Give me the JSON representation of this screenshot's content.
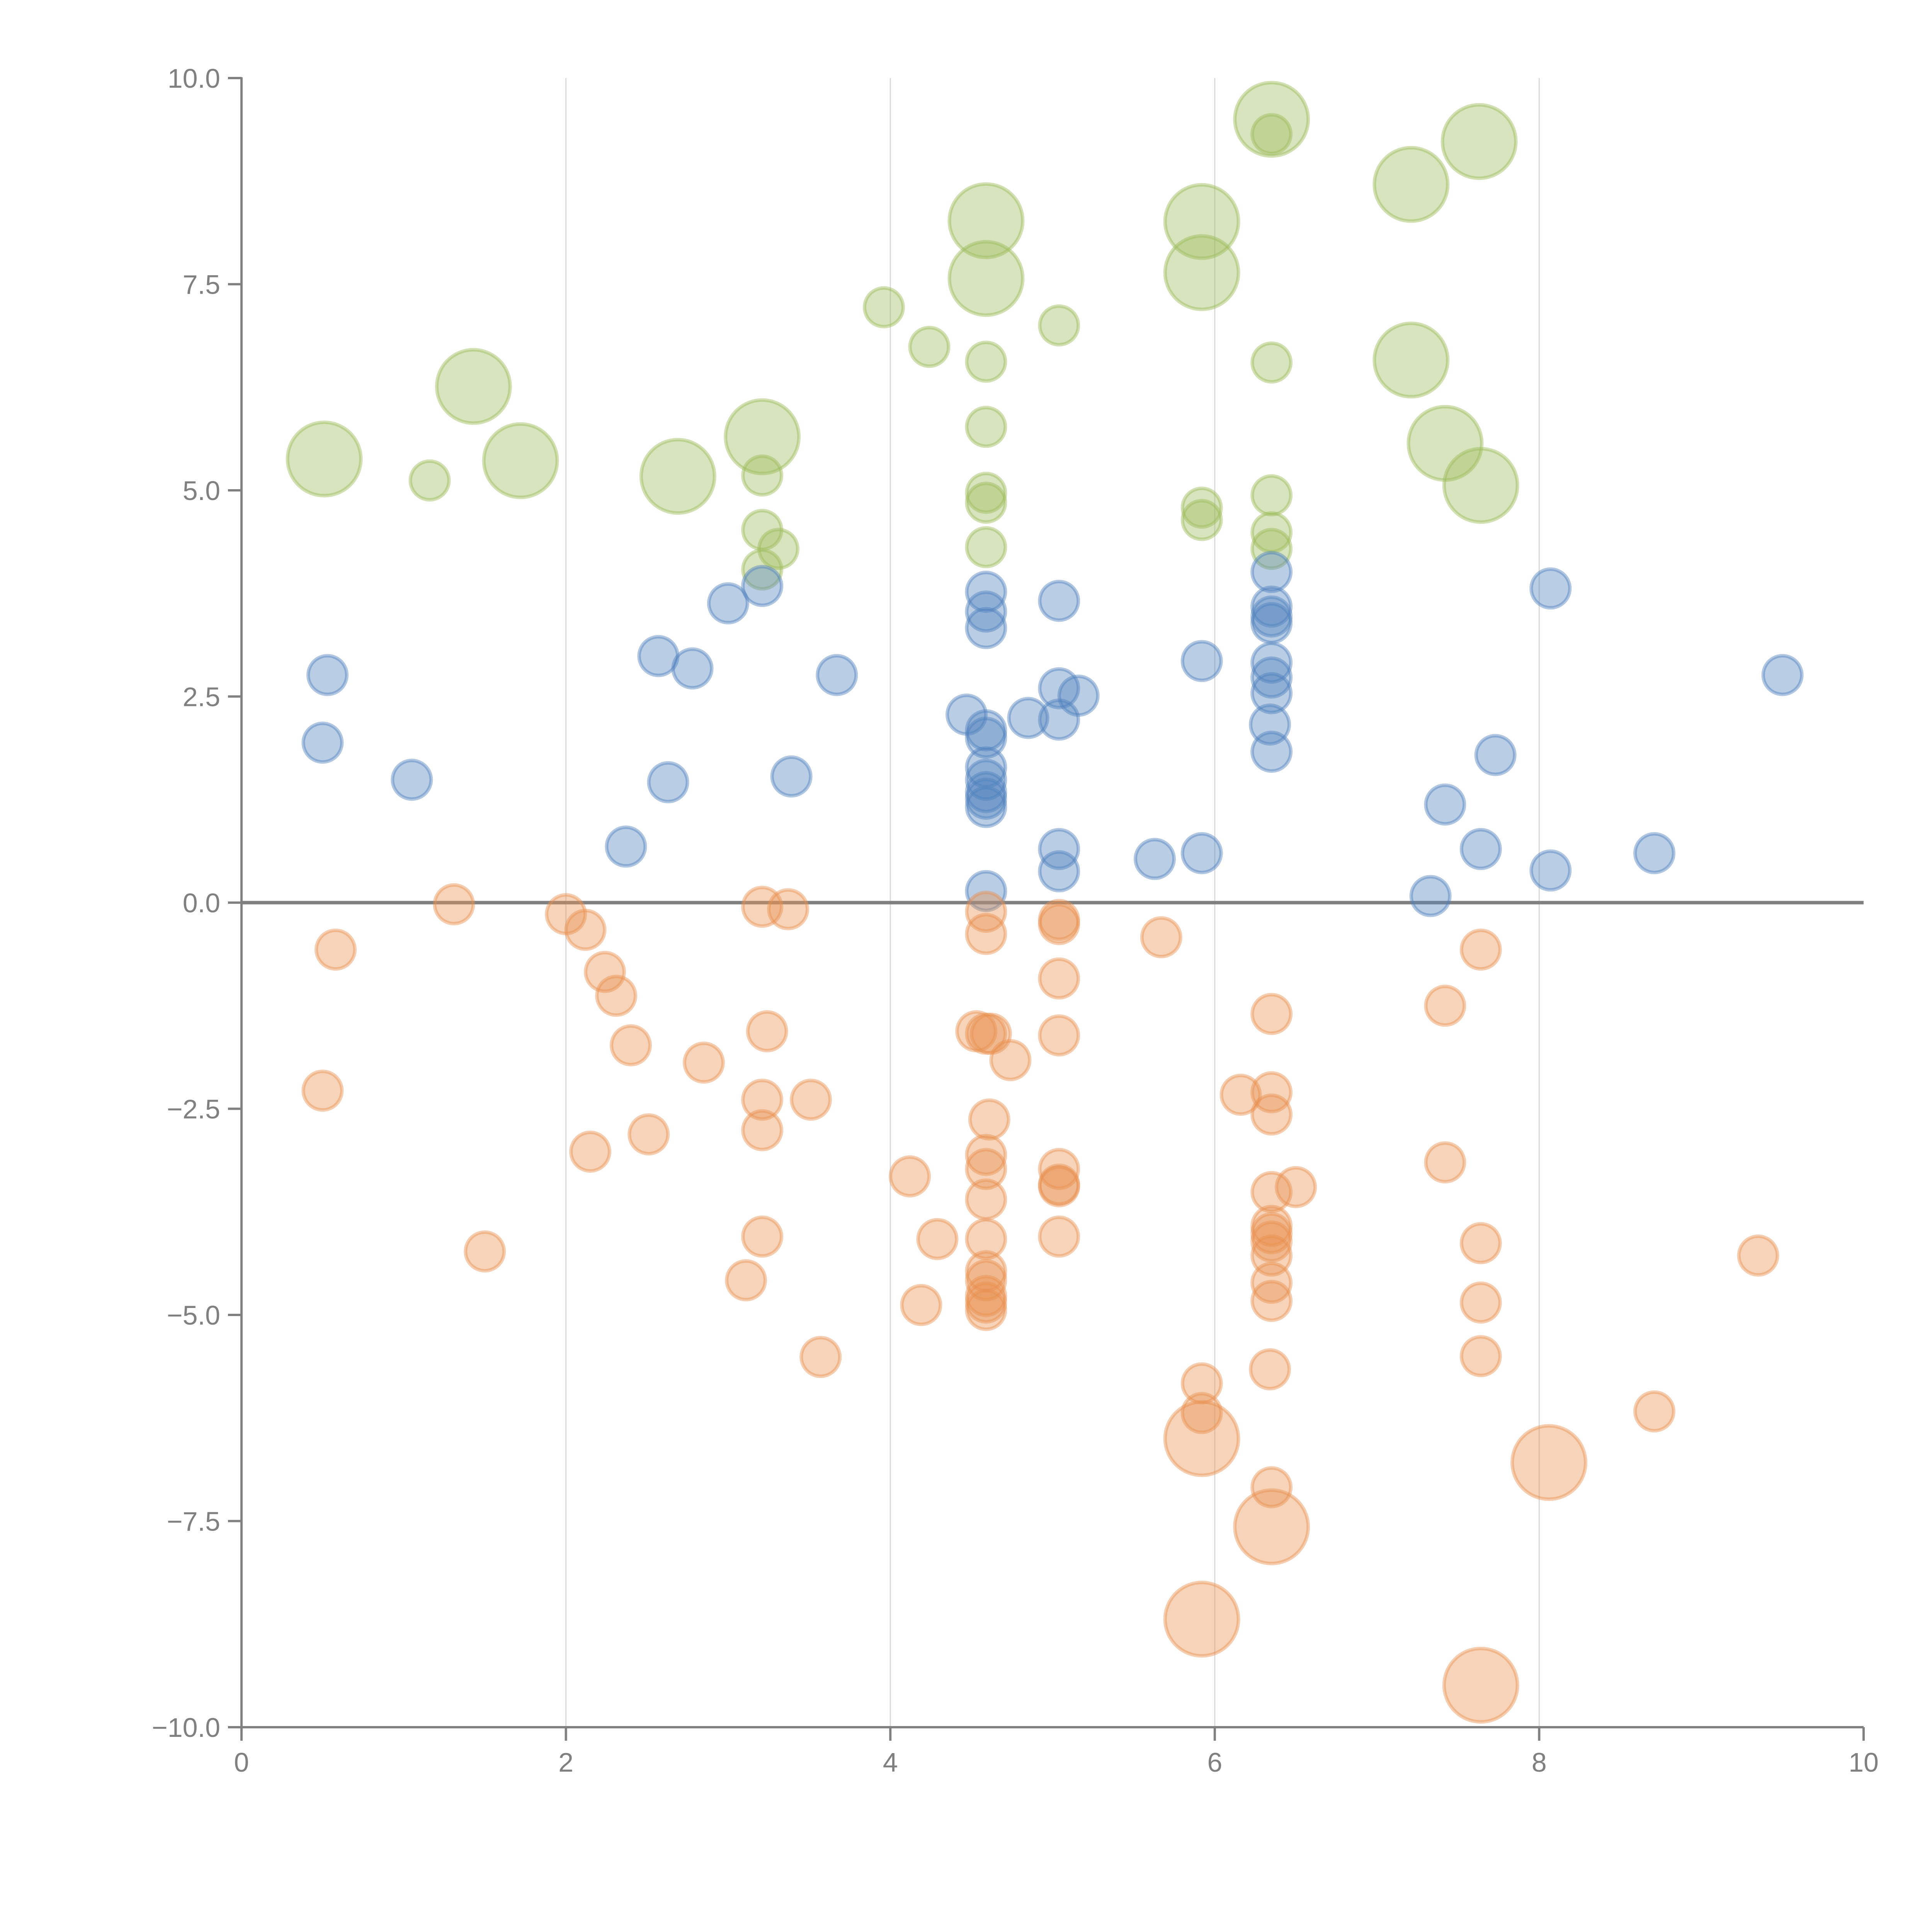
{
  "chart_data": {
    "type": "scatter",
    "subtype": "bubble",
    "title": "",
    "xlabel": "",
    "ylabel": "",
    "xlim": [
      0,
      10
    ],
    "ylim": [
      -10,
      10
    ],
    "x_ticks": [
      0,
      2,
      4,
      6,
      8,
      10
    ],
    "x_tick_labels": [
      "0",
      "2",
      "4",
      "6",
      "8",
      "10"
    ],
    "y_ticks": [
      -10,
      -7.5,
      -5,
      -2.5,
      0,
      2.5,
      5,
      7.5,
      10
    ],
    "y_tick_labels": [
      "−10.0",
      "−7.5",
      "−5.0",
      "−2.5",
      "0.0",
      "2.5",
      "5.0",
      "7.5",
      "10.0"
    ],
    "grid": {
      "vertical": true,
      "horizontal": false,
      "zero_line": true
    },
    "legend": "none",
    "point_format": [
      "x",
      "y",
      "relative_size"
    ],
    "series": [
      {
        "name": "green",
        "color": "#9bbb59",
        "points": [
          [
            0.51,
            5.38,
            2
          ],
          [
            1.16,
            5.12,
            1
          ],
          [
            1.43,
            6.26,
            2
          ],
          [
            1.72,
            5.36,
            2
          ],
          [
            2.69,
            5.17,
            2
          ],
          [
            3.21,
            5.65,
            2
          ],
          [
            3.21,
            5.18,
            1
          ],
          [
            3.21,
            4.52,
            1
          ],
          [
            3.31,
            4.29,
            1
          ],
          [
            3.21,
            4.04,
            1
          ],
          [
            3.96,
            7.22,
            1
          ],
          [
            4.24,
            6.74,
            1
          ],
          [
            4.59,
            8.27,
            2
          ],
          [
            4.59,
            7.57,
            2
          ],
          [
            4.59,
            6.56,
            1
          ],
          [
            4.59,
            5.77,
            1
          ],
          [
            4.59,
            4.97,
            1
          ],
          [
            4.59,
            4.85,
            1
          ],
          [
            4.59,
            4.31,
            1
          ],
          [
            5.04,
            7.0,
            1
          ],
          [
            5.92,
            8.26,
            2
          ],
          [
            5.92,
            7.64,
            2
          ],
          [
            5.92,
            4.79,
            1
          ],
          [
            5.92,
            4.64,
            1
          ],
          [
            6.35,
            9.5,
            2
          ],
          [
            6.35,
            9.32,
            1
          ],
          [
            6.35,
            6.55,
            1
          ],
          [
            6.35,
            4.94,
            1
          ],
          [
            6.35,
            4.49,
            1
          ],
          [
            6.35,
            4.29,
            1
          ],
          [
            7.21,
            8.71,
            2
          ],
          [
            7.63,
            9.23,
            2
          ],
          [
            7.21,
            6.58,
            2
          ],
          [
            7.42,
            5.57,
            2
          ],
          [
            7.64,
            5.06,
            2
          ]
        ]
      },
      {
        "name": "blue",
        "color": "#4f81bd",
        "points": [
          [
            0.53,
            2.76,
            1
          ],
          [
            0.5,
            1.94,
            1
          ],
          [
            1.05,
            1.49,
            1
          ],
          [
            2.37,
            0.68,
            1
          ],
          [
            2.57,
            2.99,
            1
          ],
          [
            2.63,
            1.46,
            1
          ],
          [
            2.78,
            2.84,
            1
          ],
          [
            3.0,
            3.63,
            1
          ],
          [
            3.21,
            3.84,
            1
          ],
          [
            3.39,
            1.53,
            1
          ],
          [
            3.67,
            2.76,
            1
          ],
          [
            4.47,
            2.28,
            1
          ],
          [
            4.59,
            3.77,
            1
          ],
          [
            4.59,
            3.53,
            1
          ],
          [
            4.59,
            3.33,
            1
          ],
          [
            4.59,
            2.09,
            1
          ],
          [
            4.59,
            2.0,
            1
          ],
          [
            4.59,
            1.64,
            1
          ],
          [
            4.59,
            1.49,
            1
          ],
          [
            4.59,
            1.34,
            1
          ],
          [
            4.59,
            1.26,
            1
          ],
          [
            4.59,
            1.16,
            1
          ],
          [
            4.59,
            0.14,
            1
          ],
          [
            4.85,
            2.24,
            1
          ],
          [
            5.04,
            3.66,
            1
          ],
          [
            5.04,
            2.6,
            1
          ],
          [
            5.04,
            2.22,
            1
          ],
          [
            5.16,
            2.51,
            1
          ],
          [
            5.04,
            0.65,
            1
          ],
          [
            5.04,
            0.38,
            1
          ],
          [
            5.63,
            0.53,
            1
          ],
          [
            5.92,
            2.93,
            1
          ],
          [
            5.92,
            0.6,
            1
          ],
          [
            6.35,
            4.01,
            1
          ],
          [
            6.35,
            3.59,
            1
          ],
          [
            6.35,
            3.47,
            1
          ],
          [
            6.35,
            3.39,
            1
          ],
          [
            6.35,
            2.91,
            1
          ],
          [
            6.35,
            2.73,
            1
          ],
          [
            6.35,
            2.54,
            1
          ],
          [
            6.34,
            2.16,
            1
          ],
          [
            6.35,
            1.83,
            1
          ],
          [
            7.33,
            0.08,
            1
          ],
          [
            7.42,
            1.19,
            1
          ],
          [
            7.64,
            0.65,
            1
          ],
          [
            7.73,
            1.79,
            1
          ],
          [
            8.07,
            3.81,
            1
          ],
          [
            8.07,
            0.39,
            1
          ],
          [
            8.71,
            0.6,
            1
          ],
          [
            9.5,
            2.76,
            1
          ]
        ]
      },
      {
        "name": "orange",
        "color": "#e8904f",
        "points": [
          [
            0.58,
            -0.57,
            1
          ],
          [
            0.5,
            -2.28,
            1
          ],
          [
            1.31,
            -0.02,
            1
          ],
          [
            1.5,
            -4.23,
            1
          ],
          [
            2.0,
            -0.14,
            1
          ],
          [
            2.12,
            -0.33,
            1
          ],
          [
            2.24,
            -0.84,
            1
          ],
          [
            2.31,
            -1.13,
            1
          ],
          [
            2.4,
            -1.73,
            1
          ],
          [
            2.15,
            -3.02,
            1
          ],
          [
            2.51,
            -2.81,
            1
          ],
          [
            2.85,
            -1.94,
            1
          ],
          [
            3.21,
            -0.05,
            1
          ],
          [
            3.37,
            -0.08,
            1
          ],
          [
            3.24,
            -1.56,
            1
          ],
          [
            3.21,
            -2.39,
            1
          ],
          [
            3.21,
            -2.76,
            1
          ],
          [
            3.51,
            -2.39,
            1
          ],
          [
            3.21,
            -4.05,
            1
          ],
          [
            3.11,
            -4.58,
            1
          ],
          [
            3.57,
            -5.51,
            1
          ],
          [
            4.12,
            -3.32,
            1
          ],
          [
            4.29,
            -4.08,
            1
          ],
          [
            4.19,
            -4.88,
            1
          ],
          [
            4.59,
            -0.11,
            1
          ],
          [
            4.59,
            -0.38,
            1
          ],
          [
            4.53,
            -1.56,
            1
          ],
          [
            4.59,
            -1.59,
            1
          ],
          [
            4.62,
            -1.59,
            1
          ],
          [
            4.74,
            -1.91,
            1
          ],
          [
            4.61,
            -2.63,
            1
          ],
          [
            4.59,
            -3.06,
            1
          ],
          [
            4.59,
            -3.23,
            1
          ],
          [
            4.59,
            -3.6,
            1
          ],
          [
            4.59,
            -4.08,
            1
          ],
          [
            4.59,
            -4.47,
            1
          ],
          [
            4.59,
            -4.58,
            1
          ],
          [
            4.59,
            -4.77,
            1
          ],
          [
            4.59,
            -4.85,
            1
          ],
          [
            4.59,
            -4.94,
            1
          ],
          [
            5.04,
            -0.21,
            1
          ],
          [
            5.04,
            -0.26,
            1
          ],
          [
            5.04,
            -0.92,
            1
          ],
          [
            5.04,
            -1.61,
            1
          ],
          [
            5.04,
            -3.23,
            1
          ],
          [
            5.04,
            -3.42,
            1
          ],
          [
            5.04,
            -3.44,
            1
          ],
          [
            5.04,
            -4.05,
            1
          ],
          [
            5.67,
            -0.42,
            1
          ],
          [
            5.92,
            -5.83,
            1
          ],
          [
            5.92,
            -6.19,
            1
          ],
          [
            5.92,
            -6.5,
            2
          ],
          [
            5.92,
            -8.69,
            2
          ],
          [
            6.16,
            -2.33,
            1
          ],
          [
            6.35,
            -1.35,
            1
          ],
          [
            6.35,
            -2.3,
            1
          ],
          [
            6.35,
            -2.57,
            1
          ],
          [
            6.5,
            -3.45,
            1
          ],
          [
            6.35,
            -3.51,
            1
          ],
          [
            6.35,
            -3.92,
            1
          ],
          [
            6.35,
            -4.01,
            1
          ],
          [
            6.35,
            -4.11,
            1
          ],
          [
            6.35,
            -4.28,
            1
          ],
          [
            6.35,
            -4.61,
            1
          ],
          [
            6.35,
            -4.83,
            1
          ],
          [
            6.34,
            -5.66,
            1
          ],
          [
            6.35,
            -7.09,
            1
          ],
          [
            6.35,
            -7.57,
            2
          ],
          [
            7.42,
            -1.25,
            1
          ],
          [
            7.64,
            -0.57,
            1
          ],
          [
            7.42,
            -3.15,
            1
          ],
          [
            7.64,
            -4.13,
            1
          ],
          [
            7.64,
            -4.85,
            1
          ],
          [
            7.64,
            -5.5,
            1
          ],
          [
            7.64,
            -9.49,
            2
          ],
          [
            8.06,
            -6.79,
            2
          ],
          [
            8.71,
            -6.17,
            1
          ],
          [
            9.35,
            -4.28,
            1
          ]
        ]
      }
    ]
  }
}
